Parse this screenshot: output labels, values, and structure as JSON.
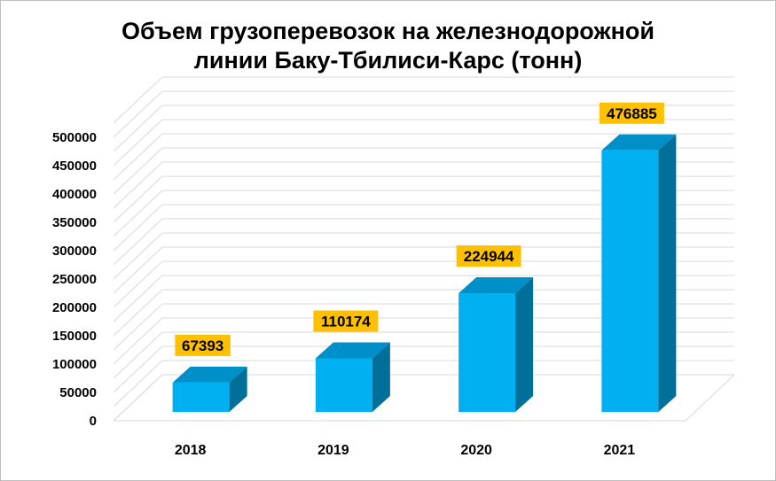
{
  "colors": {
    "bar_front": "#00b0f0",
    "bar_top": "#0090c9",
    "bar_side": "#006f9a",
    "label_bg": "#ffc000",
    "grid": "#d9d9d9"
  },
  "chart_data": {
    "type": "bar",
    "title_lines": [
      "Объем грузоперевозок на железнодорожной",
      "линии Баку-Тбилиси-Карс (тонн)"
    ],
    "categories": [
      "2018",
      "2019",
      "2020",
      "2021"
    ],
    "values": [
      67393,
      110174,
      224944,
      476885
    ],
    "data_labels": [
      "67393",
      "110174",
      "224944",
      "476885"
    ],
    "y_ticks": [
      "0",
      "50000",
      "100000",
      "150000",
      "200000",
      "250000",
      "300000",
      "350000",
      "400000",
      "450000",
      "500000"
    ],
    "ylim": [
      0,
      500000
    ],
    "grid": true,
    "legend": "none",
    "style": "3d-column"
  }
}
